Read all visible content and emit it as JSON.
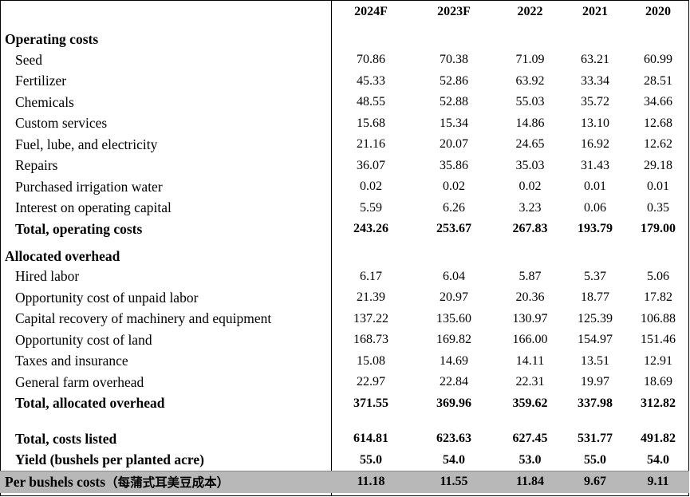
{
  "columns": [
    "2024F",
    "2023F",
    "2022",
    "2021",
    "2020"
  ],
  "operating": {
    "heading": "Operating costs",
    "rows": [
      {
        "label": "Seed",
        "values": [
          "70.86",
          "70.38",
          "71.09",
          "63.21",
          "60.99"
        ]
      },
      {
        "label": "Fertilizer",
        "values": [
          "45.33",
          "52.86",
          "63.92",
          "33.34",
          "28.51"
        ]
      },
      {
        "label": "Chemicals",
        "values": [
          "48.55",
          "52.88",
          "55.03",
          "35.72",
          "34.66"
        ]
      },
      {
        "label": "Custom services",
        "values": [
          "15.68",
          "15.34",
          "14.86",
          "13.10",
          "12.68"
        ]
      },
      {
        "label": "Fuel, lube, and electricity",
        "values": [
          "21.16",
          "20.07",
          "24.65",
          "16.92",
          "12.62"
        ]
      },
      {
        "label": "Repairs",
        "values": [
          "36.07",
          "35.86",
          "35.03",
          "31.43",
          "29.18"
        ]
      },
      {
        "label": "Purchased irrigation water",
        "values": [
          "0.02",
          "0.02",
          "0.02",
          "0.01",
          "0.01"
        ]
      },
      {
        "label": "Interest on operating capital",
        "values": [
          "5.59",
          "6.26",
          "3.23",
          "0.06",
          "0.35"
        ]
      }
    ],
    "total": {
      "label": "Total, operating costs",
      "values": [
        "243.26",
        "253.67",
        "267.83",
        "193.79",
        "179.00"
      ]
    }
  },
  "overhead": {
    "heading": "Allocated overhead",
    "rows": [
      {
        "label": "Hired labor",
        "values": [
          "6.17",
          "6.04",
          "5.87",
          "5.37",
          "5.06"
        ]
      },
      {
        "label": "Opportunity cost of unpaid labor",
        "values": [
          "21.39",
          "20.97",
          "20.36",
          "18.77",
          "17.82"
        ]
      },
      {
        "label": "Capital recovery of machinery and equipment",
        "values": [
          "137.22",
          "135.60",
          "130.97",
          "125.39",
          "106.88"
        ]
      },
      {
        "label": "Opportunity cost of land",
        "values": [
          "168.73",
          "169.82",
          "166.00",
          "154.97",
          "151.46"
        ]
      },
      {
        "label": "Taxes and insurance",
        "values": [
          "15.08",
          "14.69",
          "14.11",
          "13.51",
          "12.91"
        ]
      },
      {
        "label": "General farm overhead",
        "values": [
          "22.97",
          "22.84",
          "22.31",
          "19.97",
          "18.69"
        ]
      }
    ],
    "total": {
      "label": "Total, allocated overhead",
      "values": [
        "371.55",
        "369.96",
        "359.62",
        "337.98",
        "312.82"
      ]
    }
  },
  "summary": {
    "costs_listed": {
      "label": "Total, costs listed",
      "values": [
        "614.81",
        "623.63",
        "627.45",
        "531.77",
        "491.82"
      ]
    },
    "yield": {
      "label": "Yield (bushels per planted acre)",
      "values": [
        "55.0",
        "54.0",
        "53.0",
        "55.0",
        "54.0"
      ]
    },
    "per_bushel": {
      "label": "Per bushels costs",
      "label_cjk": "（每蒲式耳美豆成本）",
      "values": [
        "11.18",
        "11.55",
        "11.84",
        "9.67",
        "9.11"
      ]
    }
  }
}
